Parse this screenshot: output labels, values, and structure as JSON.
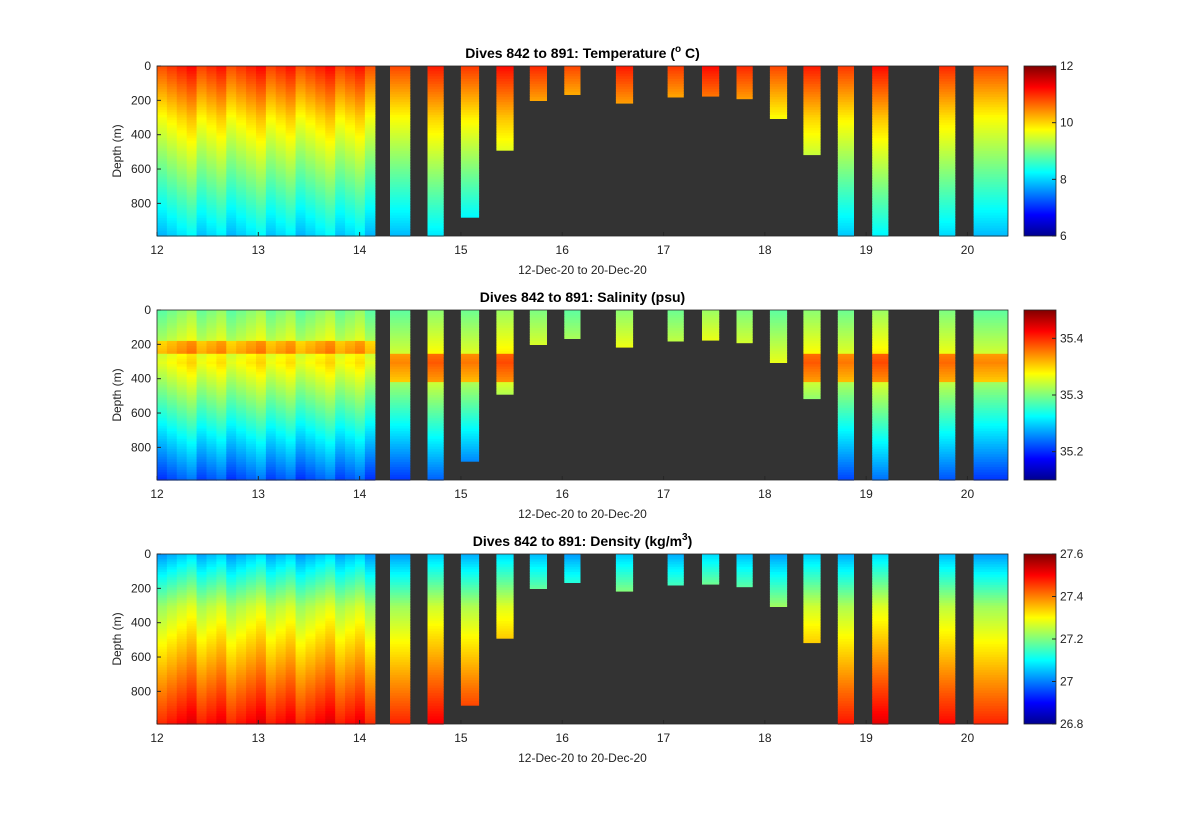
{
  "colors": {
    "background": "#ffffff",
    "nodata": "#333333",
    "axis": "#262626",
    "colormap": "jet"
  },
  "chart_data": [
    {
      "type": "heatmap",
      "title_main": "Dives 842 to 891: Temperature (",
      "title_sup": "o",
      "title_tail": " C)",
      "xlabel": "12-Dec-20 to 20-Dec-20",
      "ylabel": "Depth (m)",
      "xlim": [
        12,
        20.4
      ],
      "ylim": [
        0,
        990
      ],
      "x_ticks": [
        "12",
        "13",
        "14",
        "15",
        "16",
        "17",
        "18",
        "19",
        "20"
      ],
      "y_ticks": [
        "0",
        "200",
        "400",
        "600",
        "800"
      ],
      "colorbar": {
        "min": 6,
        "max": 12,
        "ticks": [
          "6",
          "8",
          "10",
          "12"
        ]
      },
      "profile": {
        "surface": 11.0,
        "mid": 9.9,
        "deep": 8.0
      }
    },
    {
      "type": "heatmap",
      "title_main": "Dives 842 to 891: Salinity (psu)",
      "title_sup": "",
      "title_tail": "",
      "xlabel": "12-Dec-20 to 20-Dec-20",
      "ylabel": "Depth (m)",
      "xlim": [
        12,
        20.4
      ],
      "ylim": [
        0,
        990
      ],
      "x_ticks": [
        "12",
        "13",
        "14",
        "15",
        "16",
        "17",
        "18",
        "19",
        "20"
      ],
      "y_ticks": [
        "0",
        "200",
        "400",
        "600",
        "800"
      ],
      "colorbar": {
        "min": 35.15,
        "max": 35.45,
        "ticks": [
          "35.2",
          "35.3",
          "35.4"
        ]
      },
      "profile": {
        "surface": 35.3,
        "mid": 35.34,
        "deep": 35.21
      }
    },
    {
      "type": "heatmap",
      "title_main": "Dives 842 to 891: Density (kg/m",
      "title_sup": "3",
      "title_tail": ")",
      "xlabel": "12-Dec-20 to 20-Dec-20",
      "ylabel": "Depth (m)",
      "xlim": [
        12,
        20.4
      ],
      "ylim": [
        0,
        990
      ],
      "x_ticks": [
        "12",
        "13",
        "14",
        "15",
        "16",
        "17",
        "18",
        "19",
        "20"
      ],
      "y_ticks": [
        "0",
        "200",
        "400",
        "600",
        "800"
      ],
      "colorbar": {
        "min": 26.8,
        "max": 27.6,
        "ticks": [
          "26.8",
          "27",
          "27.2",
          "27.4",
          "27.6"
        ]
      },
      "profile": {
        "surface": 27.05,
        "mid": 27.25,
        "deep": 27.5
      }
    }
  ],
  "profiles": {
    "dense_segment": {
      "start": 12.0,
      "end": 14.15,
      "bottom_depth": 990
    },
    "casts": [
      {
        "start": 14.3,
        "end": 14.5,
        "bottom_depth": 990
      },
      {
        "start": 14.67,
        "end": 14.83,
        "bottom_depth": 990
      },
      {
        "start": 15.0,
        "end": 15.18,
        "bottom_depth": 880
      },
      {
        "start": 15.35,
        "end": 15.52,
        "bottom_depth": 490
      },
      {
        "start": 15.68,
        "end": 15.85,
        "bottom_depth": 200
      },
      {
        "start": 16.02,
        "end": 16.18,
        "bottom_depth": 165
      },
      {
        "start": 16.53,
        "end": 16.7,
        "bottom_depth": 215
      },
      {
        "start": 17.04,
        "end": 17.2,
        "bottom_depth": 180
      },
      {
        "start": 17.38,
        "end": 17.55,
        "bottom_depth": 175
      },
      {
        "start": 17.72,
        "end": 17.88,
        "bottom_depth": 190
      },
      {
        "start": 18.05,
        "end": 18.22,
        "bottom_depth": 305
      },
      {
        "start": 18.38,
        "end": 18.55,
        "bottom_depth": 515
      },
      {
        "start": 18.72,
        "end": 18.88,
        "bottom_depth": 990
      },
      {
        "start": 19.06,
        "end": 19.22,
        "bottom_depth": 990
      },
      {
        "start": 19.72,
        "end": 19.88,
        "bottom_depth": 990
      },
      {
        "start": 20.06,
        "end": 20.4,
        "bottom_depth": 990
      }
    ]
  }
}
